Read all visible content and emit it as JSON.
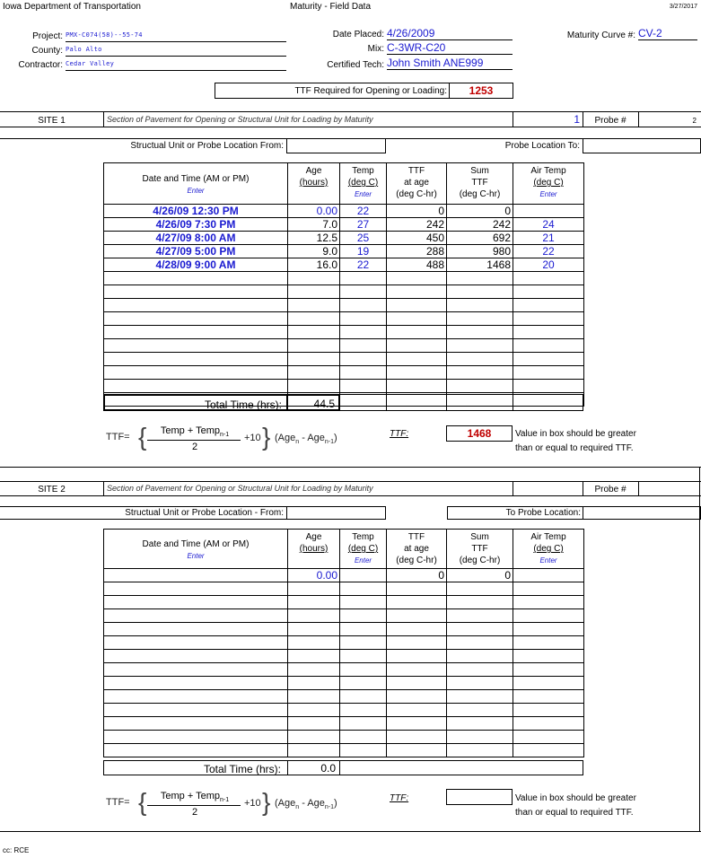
{
  "header": {
    "org": "Iowa Department of Transportation",
    "form_title": "Maturity - Field Data",
    "date": "3/27/2017"
  },
  "info": {
    "project_label": "Project:",
    "project_value": "PMX-C074(58)--55-74",
    "county_label": "County:",
    "county_value": "Palo Alto",
    "contractor_label": "Contractor:",
    "contractor_value": "Cedar Valley",
    "date_placed_label": "Date Placed:",
    "date_placed_value": "4/26/2009",
    "mix_label": "Mix:",
    "mix_value": "C-3WR-C20",
    "cert_tech_label": "Certified Tech:",
    "cert_tech_value": "John Smith ANE999",
    "curve_label": "Maturity Curve #:",
    "curve_value": "CV-2"
  },
  "ttf_required": {
    "label": "TTF Required for Opening or Loading:",
    "value": "1253"
  },
  "site1": {
    "label": "SITE 1",
    "description": "Section of Pavement for Opening or Structural Unit for Loading by Maturity",
    "number": "1",
    "probe_label": "Probe #",
    "probe_value": "2",
    "location_from_label": "Structual Unit or Probe Location From:",
    "location_to_label": "Probe Location To:",
    "columns": {
      "datetime": "Date and Time (AM or PM)",
      "age1": "Age",
      "age2": "(hours)",
      "temp1": "Temp",
      "temp2": "(deg C)",
      "ttf1": "TTF",
      "ttf2": "at age",
      "ttf3": "(deg C-hr)",
      "sum1": "Sum",
      "sum2": "TTF",
      "sum3": "(deg C-hr)",
      "air1": "Air Temp",
      "air2": "(deg C)",
      "enter": "Enter"
    },
    "rows": [
      {
        "datetime": "4/26/09 12:30 PM",
        "age": "0.00",
        "temp": "22",
        "ttf": "0",
        "sum": "0",
        "air": ""
      },
      {
        "datetime": "4/26/09 7:30 PM",
        "age": "7.0",
        "temp": "27",
        "ttf": "242",
        "sum": "242",
        "air": "24"
      },
      {
        "datetime": "4/27/09 8:00 AM",
        "age": "12.5",
        "temp": "25",
        "ttf": "450",
        "sum": "692",
        "air": "21"
      },
      {
        "datetime": "4/27/09 5:00 PM",
        "age": "9.0",
        "temp": "19",
        "ttf": "288",
        "sum": "980",
        "air": "22"
      },
      {
        "datetime": "4/28/09 9:00 AM",
        "age": "16.0",
        "temp": "22",
        "ttf": "488",
        "sum": "1468",
        "air": "20"
      }
    ],
    "total_label": "Total Time (hrs):",
    "total_value": "44.5",
    "ttf_label": "TTF:",
    "ttf_value": "1468"
  },
  "formula": {
    "lhs": "TTF=",
    "num": "Temp + Temp",
    "sub": "n-1",
    "den": "2",
    "plus10": "+10",
    "age": "(Age",
    "age_sub": "n",
    "minus": " - Age",
    "age2_sub": "n-1",
    "close": ")"
  },
  "note": {
    "line1": "Value in box should be greater",
    "line2": "than or equal to required TTF."
  },
  "site2": {
    "label": "SITE 2",
    "description": "Section of Pavement for Opening or Structural Unit for Loading by Maturity",
    "probe_label": "Probe #",
    "location_from_label": "Structual Unit or Probe Location - From:",
    "location_to_label": "To Probe Location:",
    "rows": [
      {
        "datetime": "",
        "age": "0.00",
        "temp": "",
        "ttf": "0",
        "sum": "0",
        "air": ""
      }
    ],
    "total_label": "Total Time (hrs):",
    "total_value": "0.0",
    "ttf_label": "TTF:"
  },
  "footer": {
    "cc": "cc: RCE"
  }
}
